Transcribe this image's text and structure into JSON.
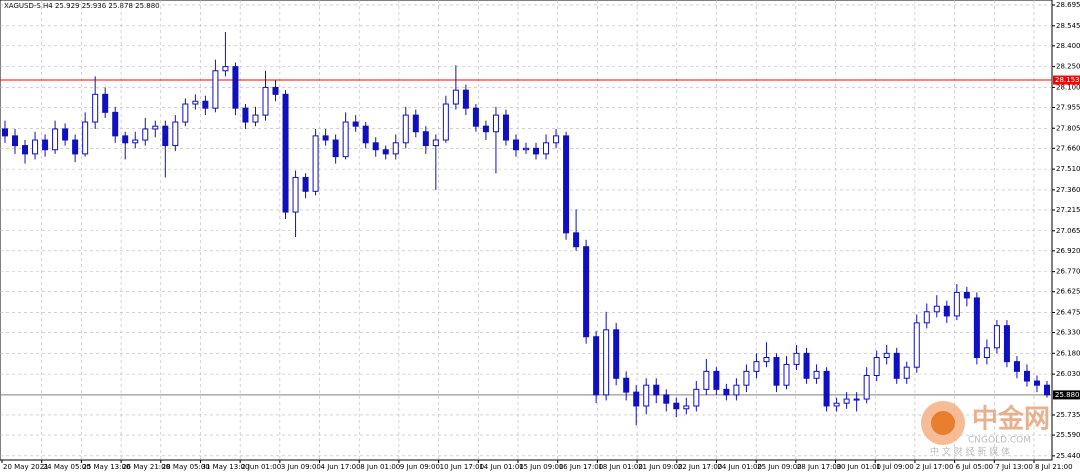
{
  "chart_data": {
    "type": "candlestick",
    "title": "XAGUSD-S,H4  25.929 25.936 25.878 25.880",
    "ylim": [
      25.41,
      28.731
    ],
    "yticks": [
      28.695,
      28.545,
      {
        "value": 28.4,
        "label": "28.400"
      },
      {
        "value": 28.25,
        "label": "28.250"
      },
      {
        "value": 28.1,
        "label": "28.100"
      },
      27.955,
      27.805,
      {
        "value": 27.66,
        "label": "27.660"
      },
      {
        "value": 27.51,
        "label": "27.510"
      },
      {
        "value": 27.36,
        "label": "27.360"
      },
      27.215,
      27.065,
      {
        "value": 26.92,
        "label": "26.920"
      },
      {
        "value": 26.77,
        "label": "26.770"
      },
      26.625,
      26.475,
      {
        "value": 26.33,
        "label": "26.330"
      },
      {
        "value": 26.18,
        "label": "26.180"
      },
      {
        "value": 26.03,
        "label": "26.030"
      },
      25.735,
      {
        "value": 25.59,
        "label": "25.590"
      },
      {
        "value": 25.44,
        "label": "25.440"
      }
    ],
    "categories": [
      "20 May 2021",
      "24 May 05:00",
      "25 May 13:00",
      "26 May 21:00",
      "28 May 05:00",
      "31 May 13:00",
      "2 Jun 01:00",
      "3 Jun 09:00",
      "4 Jun 17:00",
      "8 Jun 01:00",
      "9 Jun 09:00",
      "10 Jun 17:00",
      "14 Jun 01:00",
      "15 Jun 09:00",
      "16 Jun 17:00",
      "18 Jun 01:00",
      "21 Jun 09:00",
      "22 Jun 17:00",
      "24 Jun 01:00",
      "25 Jun 09:00",
      "28 Jun 17:00",
      "30 Jun 01:00",
      "1 Jul 09:00",
      "2 Jul 17:00",
      "6 Jul 05:00",
      "7 Jul 13:00",
      "8 Jul 21:00"
    ],
    "grid": true,
    "color": "#1010c0",
    "bull_fill": "#ffffff",
    "level_line": {
      "value": 28.153,
      "color": "#ff0000"
    },
    "last_price": {
      "value": 25.88,
      "label": "25.880",
      "color": "#808080"
    },
    "candles": [
      [
        27.8,
        27.86,
        27.7,
        27.75
      ],
      [
        27.75,
        27.8,
        27.62,
        27.68
      ],
      [
        27.68,
        27.72,
        27.55,
        27.62
      ],
      [
        27.62,
        27.78,
        27.58,
        27.72
      ],
      [
        27.72,
        27.76,
        27.6,
        27.65
      ],
      [
        27.65,
        27.86,
        27.62,
        27.8
      ],
      [
        27.8,
        27.84,
        27.68,
        27.72
      ],
      [
        27.72,
        27.76,
        27.56,
        27.62
      ],
      [
        27.62,
        27.92,
        27.6,
        27.85
      ],
      [
        27.85,
        28.18,
        27.8,
        28.05
      ],
      [
        28.05,
        28.1,
        27.88,
        27.92
      ],
      [
        27.92,
        27.96,
        27.7,
        27.75
      ],
      [
        27.75,
        27.78,
        27.58,
        27.7
      ],
      [
        27.7,
        27.78,
        27.66,
        27.72
      ],
      [
        27.72,
        27.88,
        27.68,
        27.8
      ],
      [
        27.8,
        27.86,
        27.74,
        27.82
      ],
      [
        27.82,
        27.86,
        27.45,
        27.68
      ],
      [
        27.68,
        27.9,
        27.64,
        27.85
      ],
      [
        27.85,
        28.02,
        27.82,
        27.98
      ],
      [
        27.98,
        28.05,
        27.94,
        28.0
      ],
      [
        28.0,
        28.04,
        27.9,
        27.95
      ],
      [
        27.95,
        28.3,
        27.92,
        28.22
      ],
      [
        28.22,
        28.5,
        28.18,
        28.25
      ],
      [
        28.25,
        28.28,
        27.9,
        27.95
      ],
      [
        27.95,
        27.98,
        27.8,
        27.85
      ],
      [
        27.85,
        27.96,
        27.82,
        27.9
      ],
      [
        27.9,
        28.22,
        27.86,
        28.1
      ],
      [
        28.1,
        28.15,
        28.0,
        28.05
      ],
      [
        28.05,
        28.08,
        27.15,
        27.2
      ],
      [
        27.2,
        27.5,
        27.02,
        27.45
      ],
      [
        27.45,
        27.48,
        27.3,
        27.35
      ],
      [
        27.35,
        27.8,
        27.32,
        27.75
      ],
      [
        27.75,
        27.8,
        27.68,
        27.72
      ],
      [
        27.72,
        27.76,
        27.55,
        27.6
      ],
      [
        27.6,
        27.92,
        27.58,
        27.85
      ],
      [
        27.85,
        27.9,
        27.78,
        27.82
      ],
      [
        27.82,
        27.85,
        27.66,
        27.7
      ],
      [
        27.7,
        27.74,
        27.6,
        27.65
      ],
      [
        27.65,
        27.68,
        27.58,
        27.62
      ],
      [
        27.62,
        27.76,
        27.58,
        27.7
      ],
      [
        27.7,
        27.96,
        27.66,
        27.9
      ],
      [
        27.9,
        27.94,
        27.74,
        27.78
      ],
      [
        27.78,
        27.82,
        27.62,
        27.68
      ],
      [
        27.68,
        27.76,
        27.36,
        27.72
      ],
      [
        27.72,
        28.04,
        27.7,
        27.98
      ],
      [
        27.98,
        28.26,
        27.94,
        28.08
      ],
      [
        28.08,
        28.12,
        27.9,
        27.95
      ],
      [
        27.95,
        27.98,
        27.78,
        27.82
      ],
      [
        27.82,
        27.86,
        27.72,
        27.78
      ],
      [
        27.78,
        27.96,
        27.48,
        27.9
      ],
      [
        27.9,
        27.94,
        27.68,
        27.72
      ],
      [
        27.72,
        27.76,
        27.6,
        27.65
      ],
      [
        27.65,
        27.7,
        27.62,
        27.66
      ],
      [
        27.66,
        27.7,
        27.58,
        27.62
      ],
      [
        27.62,
        27.76,
        27.58,
        27.7
      ],
      [
        27.7,
        27.8,
        27.66,
        27.75
      ],
      [
        27.75,
        27.78,
        27.0,
        27.05
      ],
      [
        27.05,
        27.22,
        26.92,
        26.95
      ],
      [
        26.95,
        27.0,
        26.25,
        26.3
      ],
      [
        26.3,
        26.34,
        25.82,
        25.88
      ],
      [
        25.88,
        26.48,
        25.84,
        26.35
      ],
      [
        26.35,
        26.4,
        25.95,
        26.0
      ],
      [
        26.0,
        26.05,
        25.84,
        25.9
      ],
      [
        25.9,
        25.95,
        25.66,
        25.8
      ],
      [
        25.8,
        26.0,
        25.74,
        25.95
      ],
      [
        25.95,
        26.0,
        25.82,
        25.88
      ],
      [
        25.88,
        25.92,
        25.76,
        25.82
      ],
      [
        25.82,
        25.86,
        25.72,
        25.78
      ],
      [
        25.78,
        25.86,
        25.74,
        25.8
      ],
      [
        25.8,
        25.98,
        25.76,
        25.92
      ],
      [
        25.92,
        26.14,
        25.88,
        26.05
      ],
      [
        26.05,
        26.08,
        25.88,
        25.92
      ],
      [
        25.92,
        25.96,
        25.84,
        25.88
      ],
      [
        25.88,
        26.0,
        25.84,
        25.95
      ],
      [
        25.95,
        26.1,
        25.9,
        26.05
      ],
      [
        26.05,
        26.18,
        26.0,
        26.12
      ],
      [
        26.12,
        26.26,
        26.08,
        26.15
      ],
      [
        26.15,
        26.18,
        25.9,
        25.95
      ],
      [
        25.95,
        26.16,
        25.92,
        26.1
      ],
      [
        26.1,
        26.24,
        26.06,
        26.18
      ],
      [
        26.18,
        26.22,
        25.96,
        26.0
      ],
      [
        26.0,
        26.1,
        25.96,
        26.05
      ],
      [
        26.05,
        26.08,
        25.76,
        25.8
      ],
      [
        25.8,
        25.86,
        25.76,
        25.82
      ],
      [
        25.82,
        25.9,
        25.78,
        25.85
      ],
      [
        25.85,
        25.9,
        25.76,
        25.85
      ],
      [
        25.85,
        26.08,
        25.82,
        26.02
      ],
      [
        26.02,
        26.2,
        25.98,
        26.15
      ],
      [
        26.15,
        26.24,
        26.1,
        26.18
      ],
      [
        26.18,
        26.22,
        25.96,
        26.0
      ],
      [
        26.0,
        26.12,
        25.96,
        26.08
      ],
      [
        26.08,
        26.46,
        26.04,
        26.4
      ],
      [
        26.4,
        26.54,
        26.36,
        26.48
      ],
      [
        26.48,
        26.6,
        26.44,
        26.52
      ],
      [
        26.52,
        26.56,
        26.4,
        26.45
      ],
      [
        26.45,
        26.68,
        26.42,
        26.62
      ],
      [
        26.62,
        26.66,
        26.52,
        26.58
      ],
      [
        26.58,
        26.62,
        26.1,
        26.15
      ],
      [
        26.15,
        26.28,
        26.1,
        26.22
      ],
      [
        26.22,
        26.42,
        26.18,
        26.38
      ],
      [
        26.38,
        26.42,
        26.08,
        26.12
      ],
      [
        26.12,
        26.16,
        26.0,
        26.05
      ],
      [
        26.05,
        26.1,
        25.94,
        25.98
      ],
      [
        25.98,
        26.02,
        25.9,
        25.95
      ],
      [
        25.95,
        25.98,
        25.86,
        25.88
      ]
    ],
    "watermark": {
      "brand": "中金网",
      "site": "CNGOLD.COM",
      "slogan": "中 文 财 经 新 媒 体"
    }
  }
}
